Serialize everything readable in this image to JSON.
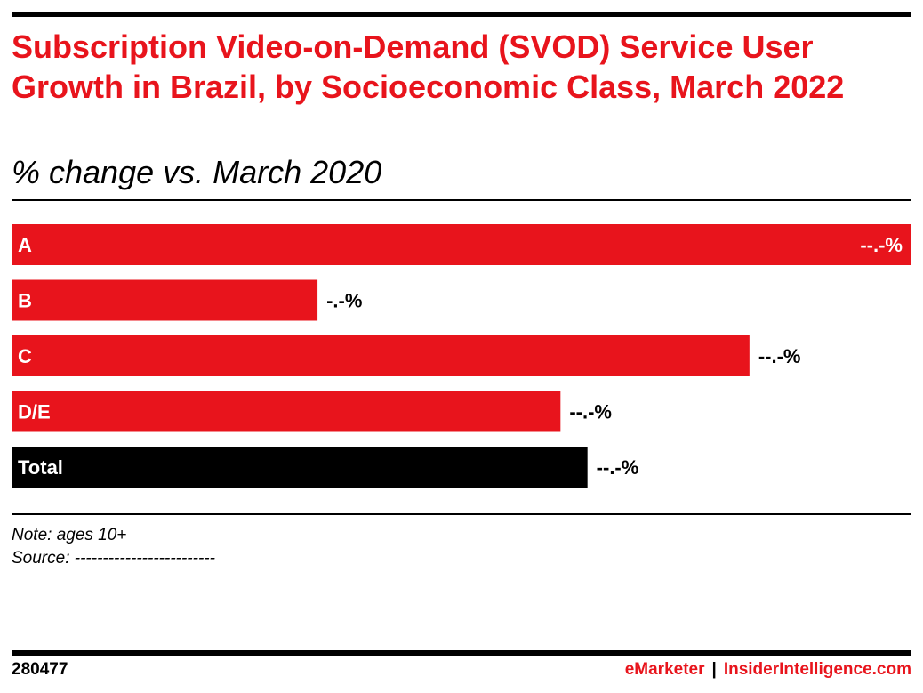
{
  "header": {
    "title": "Subscription Video-on-Demand (SVOD) Service User Growth in Brazil, by Socioeconomic Class, March 2022",
    "subtitle": "% change vs. March 2020"
  },
  "chart_data": {
    "type": "bar",
    "orientation": "horizontal",
    "title": "Subscription Video-on-Demand (SVOD) Service User Growth in Brazil, by Socioeconomic Class, March 2022",
    "subtitle": "% change vs. March 2020",
    "categories": [
      "A",
      "B",
      "C",
      "D/E",
      "Total"
    ],
    "values": [
      100,
      34,
      82,
      61,
      64
    ],
    "value_labels": [
      "--.-%",
      "-.-%",
      "--.-%",
      "--.-%",
      "--.-%"
    ],
    "bar_colors": [
      "#e8141c",
      "#e8141c",
      "#e8141c",
      "#e8141c",
      "#000000"
    ],
    "xlim": [
      0,
      100
    ],
    "grid": false,
    "legend": "none"
  },
  "notes": {
    "note": "Note: ages 10+",
    "source": "Source: -------------------------"
  },
  "footer": {
    "chart_id": "280477",
    "brand_primary": "eMarketer",
    "separator": "|",
    "brand_secondary": "InsiderIntelligence.com"
  },
  "colors": {
    "accent": "#e8141c",
    "total_bar": "#000000"
  }
}
